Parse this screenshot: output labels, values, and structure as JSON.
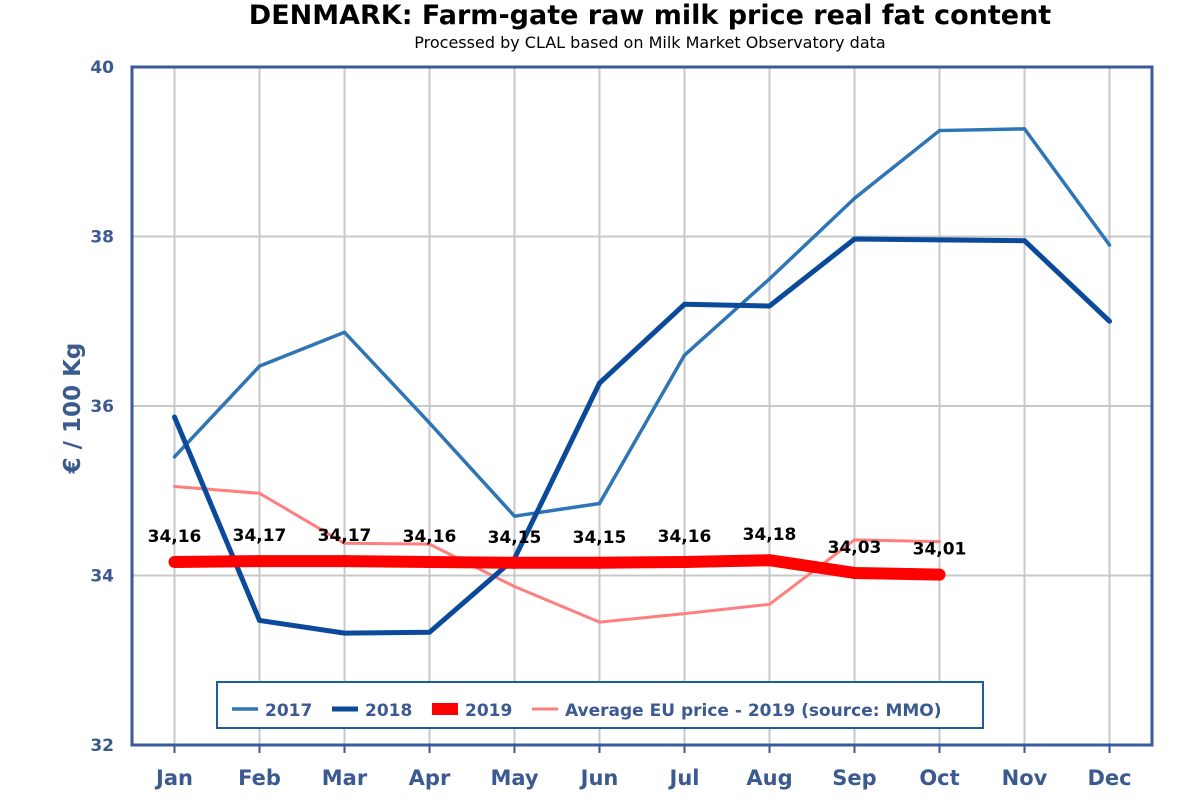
{
  "chart_data": {
    "type": "line",
    "title": "DENMARK: Farm-gate raw milk price real fat content",
    "subtitle": "Processed by CLAL based on Milk Market Observatory data",
    "ylabel": "€ / 100 Kg",
    "xlabel": "",
    "categories": [
      "Jan",
      "Feb",
      "Mar",
      "Apr",
      "May",
      "Jun",
      "Jul",
      "Aug",
      "Sep",
      "Oct",
      "Nov",
      "Dec"
    ],
    "ylim": [
      32,
      40
    ],
    "yticks": [
      "32",
      "34",
      "36",
      "38",
      "40"
    ],
    "grid": true,
    "legend_position": "bottom-center",
    "series": [
      {
        "name": "2017",
        "color": "#2e75b6",
        "values": [
          35.4,
          36.47,
          36.87,
          35.8,
          34.7,
          34.85,
          36.6,
          37.5,
          38.45,
          39.25,
          39.27,
          37.9
        ]
      },
      {
        "name": "2018",
        "color": "#0b4a9b",
        "values": [
          35.87,
          33.47,
          33.32,
          33.33,
          34.2,
          36.27,
          37.2,
          37.18,
          37.97,
          37.96,
          37.95,
          37.0
        ]
      },
      {
        "name": "2019",
        "color": "#ff0000",
        "values": [
          34.16,
          34.17,
          34.17,
          34.16,
          34.15,
          34.15,
          34.16,
          34.18,
          34.03,
          34.01,
          null,
          null
        ],
        "data_labels": [
          "34,16",
          "34,17",
          "34,17",
          "34,16",
          "34,15",
          "34,15",
          "34,16",
          "34,18",
          "34,03",
          "34,01"
        ]
      },
      {
        "name": "Average EU price - 2019 (source: MMO)",
        "color": "#ff7f7f",
        "values": [
          35.05,
          34.97,
          34.38,
          34.37,
          33.87,
          33.45,
          33.55,
          33.66,
          34.42,
          34.4,
          null,
          null
        ]
      }
    ]
  }
}
